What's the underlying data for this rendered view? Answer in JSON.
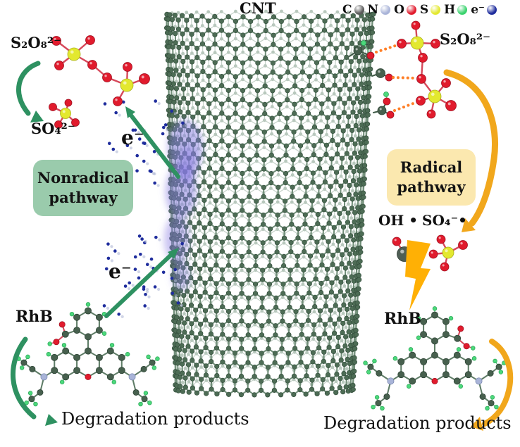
{
  "cnt_label": "CNT",
  "legend": {
    "items": [
      {
        "id": "carbon",
        "symbol": "C",
        "color": "#5b5b5b"
      },
      {
        "id": "nitrogen",
        "symbol": "N",
        "color": "#a9b4d8"
      },
      {
        "id": "oxygen",
        "symbol": "O",
        "color": "#e11b2d"
      },
      {
        "id": "sulfur",
        "symbol": "S",
        "color": "#e3e82f"
      },
      {
        "id": "hydrogen",
        "symbol": "H",
        "color": "#3bd36e"
      },
      {
        "id": "electron",
        "symbol": "e⁻",
        "color": "#1f2d9d"
      }
    ]
  },
  "left_pathway": {
    "persulfate_label": "S₂O₈²⁻",
    "sulfate_label": "SO₄²⁻",
    "box_line1": "Nonradical",
    "box_line2": "pathway",
    "box_bg": "#9acbac",
    "electron_symbol_top": "e⁻",
    "electron_symbol_bottom": "e⁻",
    "rhb_label": "RhB",
    "products_label": "Degradation products",
    "arrow_color": "#2e9161"
  },
  "right_pathway": {
    "persulfate_label": "S₂O₈²⁻",
    "box_line1": "Radical",
    "box_line2": "pathway",
    "box_bg": "#fbe8af",
    "hydroxyl_radical_label": "OH •",
    "sulfate_radical_label": "SO₄⁻•",
    "rhb_label": "RhB",
    "products_label": "Degradation products",
    "arrow_color": "#f1a71c",
    "hbond_color": "#ff7f27",
    "bolt_color": "#ffb005"
  },
  "colors": {
    "cnt_atom": "#4d6c55",
    "cnt_atom_back": "#7f9c88",
    "cnt_bond": "#6f8d77",
    "cnt_bond_back": "#97ae9e",
    "carbon": "#47604e",
    "oxygen": "#e11b2d",
    "sulfur": "#e3e82f",
    "hydrogen": "#4cd97c",
    "nitrogen": "#a9b4d8",
    "electron": "#1f2d9d",
    "electron_ghost": "#a9b2d2",
    "cloud": "#8478e0",
    "mol_bond": "#d6485a",
    "ring_bond": "#5e7c66",
    "h_stick": "#6fbf8a"
  }
}
